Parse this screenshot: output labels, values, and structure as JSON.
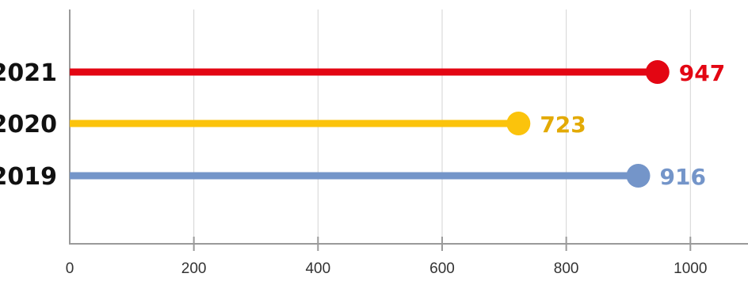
{
  "chart_data": {
    "type": "lollipop",
    "title": "",
    "xlabel": "",
    "ylabel": "",
    "xlim": [
      0,
      1100
    ],
    "x_ticks": [
      0,
      200,
      400,
      600,
      800,
      1000
    ],
    "x_tick_labels": [
      "0",
      "200",
      "400",
      "600",
      "800",
      "1000"
    ],
    "grid": "vertical",
    "legend": "none",
    "categories": [
      "2021",
      "2020",
      "2019"
    ],
    "values": [
      947,
      723,
      916
    ],
    "value_labels": [
      "947",
      "723",
      "916"
    ],
    "colors": [
      "#e30613",
      "#fbc30c",
      "#7495c9"
    ],
    "label_colors": [
      "#e30613",
      "#e3aa05",
      "#7495c9"
    ]
  }
}
